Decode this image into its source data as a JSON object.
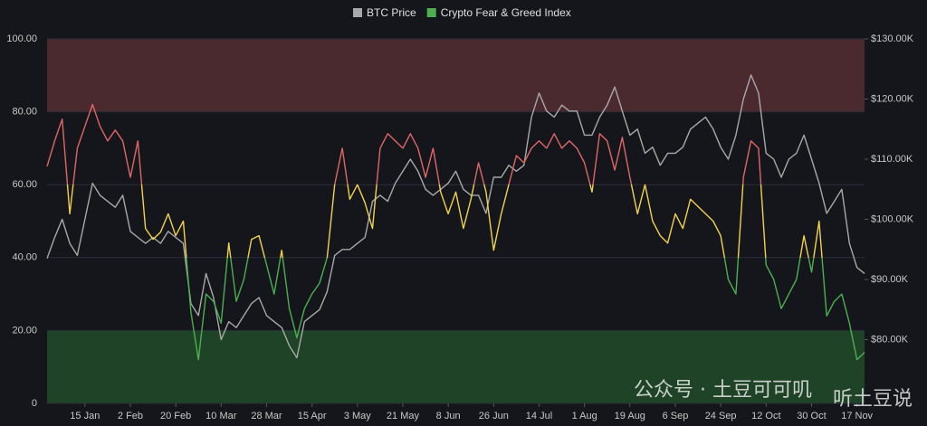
{
  "chart_data": {
    "type": "line",
    "categories": [
      null,
      null,
      null,
      null,
      null,
      "15 Jan",
      null,
      null,
      null,
      null,
      null,
      "2 Feb",
      null,
      null,
      null,
      null,
      null,
      "20 Feb",
      null,
      null,
      null,
      null,
      null,
      "10 Mar",
      null,
      null,
      null,
      null,
      null,
      "28 Mar",
      null,
      null,
      null,
      null,
      null,
      "15 Apr",
      null,
      null,
      null,
      null,
      null,
      "3 May",
      null,
      null,
      null,
      null,
      null,
      "21 May",
      null,
      null,
      null,
      null,
      null,
      "8 Jun",
      null,
      null,
      null,
      null,
      null,
      "26 Jun",
      null,
      null,
      null,
      null,
      null,
      "14 Jul",
      null,
      null,
      null,
      null,
      null,
      "1 Aug",
      null,
      null,
      null,
      null,
      null,
      "19 Aug",
      null,
      null,
      null,
      null,
      null,
      "6 Sep",
      null,
      null,
      null,
      null,
      null,
      "24 Sep",
      null,
      null,
      null,
      null,
      null,
      "12 Oct",
      null,
      null,
      null,
      null,
      null,
      "30 Oct",
      null,
      null,
      null,
      null,
      null,
      "17 Nov",
      null
    ],
    "series": [
      {
        "name": "BTC Price",
        "color": "#a8a8a8",
        "axis": "y2",
        "values": [
          93500,
          97000,
          100000,
          96000,
          94000,
          100000,
          106000,
          104000,
          103000,
          102000,
          104000,
          98000,
          97000,
          96000,
          97000,
          96000,
          98000,
          97000,
          96000,
          86000,
          84000,
          91000,
          87000,
          80000,
          83000,
          82000,
          84000,
          86000,
          87000,
          84000,
          83000,
          82000,
          79000,
          77000,
          83000,
          84000,
          85000,
          88000,
          94000,
          95000,
          95000,
          96000,
          97000,
          103000,
          104000,
          103000,
          106000,
          108000,
          110000,
          108000,
          105000,
          104000,
          105000,
          106000,
          108000,
          105000,
          104000,
          104000,
          101000,
          107000,
          107000,
          109000,
          108000,
          109000,
          117000,
          121000,
          118000,
          117000,
          119000,
          118000,
          118000,
          114000,
          114000,
          117000,
          119000,
          122000,
          118000,
          114000,
          115000,
          111000,
          112000,
          109000,
          111000,
          111000,
          112000,
          115000,
          116000,
          117000,
          115000,
          112000,
          110000,
          114000,
          120000,
          124000,
          121000,
          111000,
          110000,
          107000,
          110000,
          111000,
          114000,
          110000,
          106000,
          101000,
          103000,
          105000,
          96000,
          92000,
          91000
        ]
      },
      {
        "name": "Crypto Fear & Greed Index",
        "color": "#4caf50",
        "values": [
          65,
          72,
          78,
          52,
          70,
          76,
          82,
          76,
          72,
          75,
          72,
          62,
          72,
          48,
          45,
          47,
          52,
          46,
          50,
          25,
          12,
          30,
          28,
          22,
          44,
          28,
          34,
          45,
          46,
          38,
          30,
          42,
          26,
          18,
          26,
          30,
          33,
          40,
          60,
          70,
          56,
          60,
          55,
          48,
          70,
          74,
          72,
          70,
          74,
          70,
          62,
          70,
          58,
          52,
          58,
          48,
          56,
          66,
          58,
          42,
          52,
          60,
          68,
          66,
          70,
          72,
          70,
          74,
          70,
          72,
          70,
          66,
          58,
          74,
          72,
          64,
          73,
          62,
          52,
          60,
          50,
          46,
          44,
          52,
          48,
          56,
          54,
          52,
          50,
          46,
          34,
          30,
          62,
          72,
          70,
          38,
          34,
          26,
          30,
          34,
          46,
          36,
          50,
          24,
          28,
          30,
          22,
          12,
          14
        ]
      }
    ],
    "zones": [
      {
        "from": 60,
        "to": 100,
        "color": "#e06666"
      },
      {
        "from": 40,
        "to": 60,
        "color": "#f2d24b"
      },
      {
        "from": 0,
        "to": 40,
        "color": "#4caf50"
      }
    ],
    "bands": [
      {
        "from": 80,
        "to": 100,
        "color": "#4a2a2f"
      },
      {
        "from": 0,
        "to": 20,
        "color": "#1f4326"
      }
    ],
    "ylim": [
      0,
      100
    ],
    "yticks": [
      0,
      {
        "value": 20,
        "label": "20.00"
      },
      {
        "value": 40,
        "label": "40.00"
      },
      {
        "value": 60,
        "label": "60.00"
      },
      {
        "value": 80,
        "label": "80.00"
      },
      {
        "value": 100,
        "label": "100.00"
      }
    ],
    "y2lim": [
      69400,
      130000
    ],
    "y2ticks": [
      {
        "value": 80000,
        "label": "$80.00K"
      },
      {
        "value": 90000,
        "label": "$90.00K"
      },
      {
        "value": 100000,
        "label": "$100.00K"
      },
      {
        "value": 110000,
        "label": "$110.00K"
      },
      {
        "value": 120000,
        "label": "$120.00K"
      },
      {
        "value": 130000,
        "label": "$130.00K"
      }
    ],
    "grid": true,
    "legend": "top",
    "watermark": "公众号 · 土豆可可叽",
    "watermark_brand": "听土豆说"
  }
}
